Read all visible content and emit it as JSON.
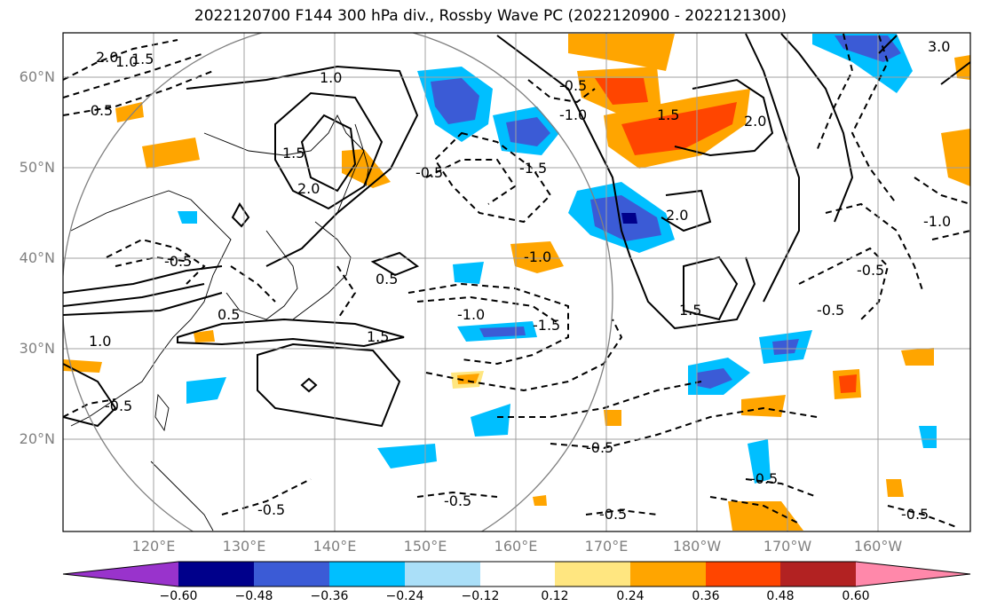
{
  "title": "2022120700 F144 300 hPa div., Rossby Wave PC (2022120900 - 2022121300)",
  "lat_labels": [
    "60°N",
    "50°N",
    "40°N",
    "30°N",
    "20°N"
  ],
  "lon_labels": [
    "120°E",
    "130°E",
    "140°E",
    "150°E",
    "160°E",
    "170°E",
    "180°W",
    "170°W",
    "160°W"
  ],
  "contour_labels": [
    "2.0",
    "1.5",
    "1.0",
    "-0.5",
    "1.0",
    "1.5",
    "2.0",
    "-0.5",
    "0.5",
    "-0.5",
    "-1.0",
    "-1.5",
    "2.0",
    "2.0",
    "1.5",
    "1.5",
    "-1.0",
    "-1.5",
    "-1.0",
    "-0.5",
    "1.5",
    "1.0",
    "-0.5",
    "-0.5",
    "-0.5",
    "-0.5",
    "-0.5",
    "-0.5",
    "-1.0",
    "-0.5",
    "0.5",
    "-0.5",
    "-0.5",
    "3.0"
  ],
  "colorbar": {
    "labels": [
      "−0.60",
      "−0.48",
      "−0.36",
      "−0.24",
      "−0.12",
      "0.12",
      "0.24",
      "0.36",
      "0.48",
      "0.60"
    ],
    "colors": [
      "#9933cc",
      "#00008b",
      "#3b5bd6",
      "#00bfff",
      "#aadff8",
      "#ffffff",
      "#ffe680",
      "#ffa500",
      "#ff4500",
      "#b22222",
      "#ff88aa"
    ]
  }
}
